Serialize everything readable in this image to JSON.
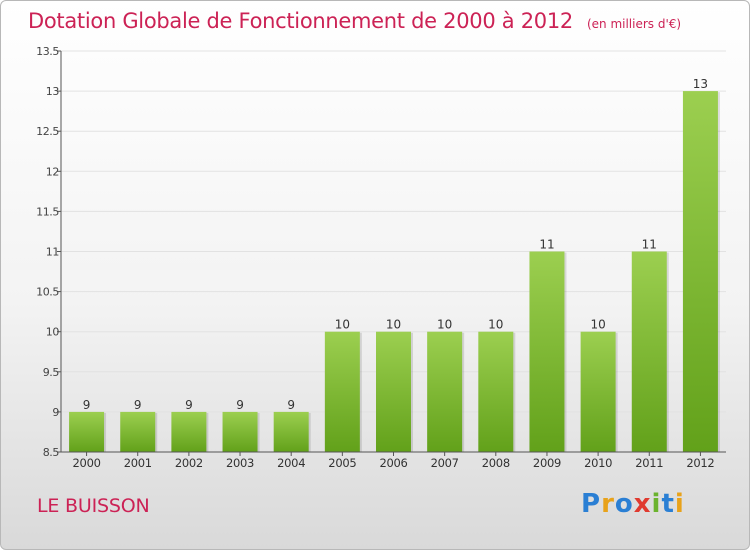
{
  "title": "Dotation Globale de Fonctionnement de 2000 à 2012",
  "unit_note": "(en milliers d'€)",
  "commune": "LE BUISSON",
  "logo": {
    "text": "Proxiti",
    "letters": [
      {
        "ch": "P",
        "color": "#2a7fd4"
      },
      {
        "ch": "r",
        "color": "#e8a21a"
      },
      {
        "ch": "o",
        "color": "#2a7fd4"
      },
      {
        "ch": "x",
        "color": "#e03a2f"
      },
      {
        "ch": "i",
        "color": "#6bb32e"
      },
      {
        "ch": "t",
        "color": "#2a7fd4"
      },
      {
        "ch": "i",
        "color": "#e8a21a"
      }
    ]
  },
  "colors": {
    "accent": "#cc2255",
    "bar_top": "#9ccf50",
    "bar_bottom": "#62a11a",
    "axis": "#555555",
    "grid": "#e2e2e2"
  },
  "chart_data": {
    "type": "bar",
    "title": "Dotation Globale de Fonctionnement de 2000 à 2012",
    "subtitle": "(en milliers d'€)",
    "xlabel": "",
    "ylabel": "",
    "categories": [
      "2000",
      "2001",
      "2002",
      "2003",
      "2004",
      "2005",
      "2006",
      "2007",
      "2008",
      "2009",
      "2010",
      "2011",
      "2012"
    ],
    "values": [
      9,
      9,
      9,
      9,
      9,
      10,
      10,
      10,
      10,
      11,
      10,
      11,
      13
    ],
    "value_labels": [
      "9",
      "9",
      "9",
      "9",
      "9",
      "10",
      "10",
      "10",
      "10",
      "11",
      "10",
      "11",
      "13"
    ],
    "ylim": [
      8.5,
      13.5
    ],
    "yticks": [
      8.5,
      9,
      9.5,
      10,
      10.5,
      11,
      11.5,
      12,
      12.5,
      13,
      13.5
    ],
    "ytick_labels": [
      "8.5",
      "9",
      "9.5",
      "10",
      "10.5",
      "11",
      "11.5",
      "12",
      "12.5",
      "13",
      "13.5"
    ],
    "grid": true
  }
}
